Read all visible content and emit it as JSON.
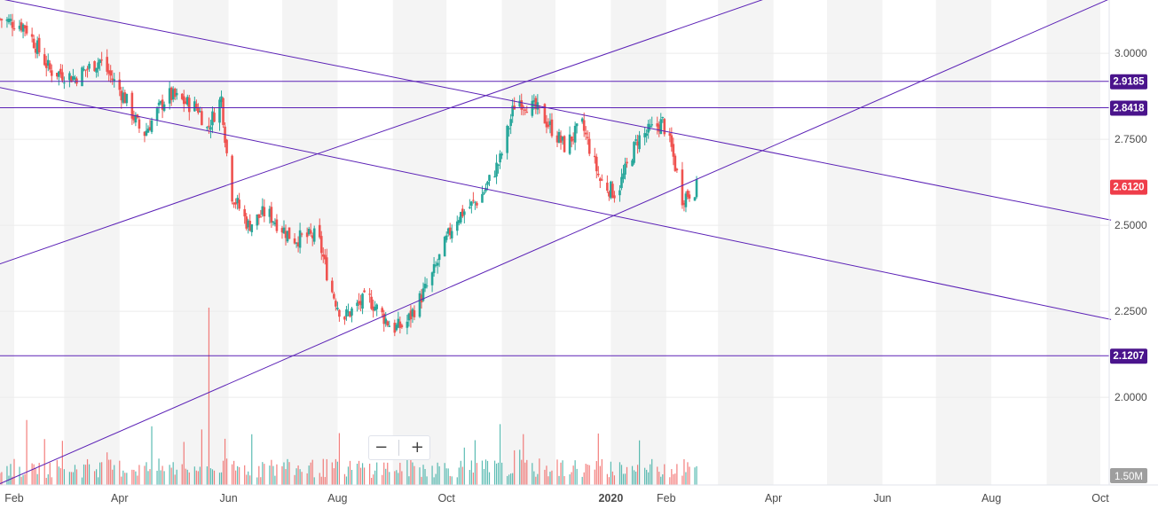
{
  "colors": {
    "up": "#26a69a",
    "down": "#ef5350",
    "trendline": "#5b21b6",
    "price_tag": "#ef3d4a",
    "level_tag": "#4a148c",
    "volume_tag": "#9e9e9e",
    "band": "#f4f4f4"
  },
  "toolbar": {
    "zoom_out": "−",
    "zoom_in": "+"
  },
  "chart_data": {
    "type": "candlestick",
    "y_axis": {
      "ticks": [
        "3.0000",
        "2.7500",
        "2.5000",
        "2.2500",
        "2.0000"
      ],
      "tick_values": [
        3.0,
        2.75,
        2.5,
        2.25,
        2.0
      ],
      "ylim": [
        1.745,
        3.155
      ]
    },
    "x_axis": {
      "ticks": [
        "Feb",
        "Apr",
        "Jun",
        "Aug",
        "Oct",
        "2020",
        "Feb",
        "Apr",
        "Jun",
        "Aug",
        "Oct"
      ],
      "tick_dates": [
        "2019-02",
        "2019-04",
        "2019-06",
        "2019-08",
        "2019-10",
        "2020-01",
        "2020-02",
        "2020-04",
        "2020-06",
        "2020-08",
        "2020-10"
      ]
    },
    "current_price": "2.6120",
    "horizontal_levels": [
      "2.9185",
      "2.8418",
      "2.1207"
    ],
    "volume_label": "1.50M",
    "close_path": [
      [
        "2019-01-24",
        3.1
      ],
      [
        "2019-02-07",
        3.08
      ],
      [
        "2019-02-21",
        2.95
      ],
      [
        "2019-03-07",
        2.93
      ],
      [
        "2019-03-21",
        2.98
      ],
      [
        "2019-04-04",
        2.87
      ],
      [
        "2019-04-14",
        2.76
      ],
      [
        "2019-04-28",
        2.88
      ],
      [
        "2019-05-15",
        2.84
      ],
      [
        "2019-05-20",
        2.78
      ],
      [
        "2019-05-28",
        2.87
      ],
      [
        "2019-06-02",
        2.6
      ],
      [
        "2019-06-12",
        2.5
      ],
      [
        "2019-06-22",
        2.54
      ],
      [
        "2019-07-07",
        2.46
      ],
      [
        "2019-07-21",
        2.47
      ],
      [
        "2019-07-28",
        2.32
      ],
      [
        "2019-08-04",
        2.23
      ],
      [
        "2019-08-18",
        2.29
      ],
      [
        "2019-09-01",
        2.2
      ],
      [
        "2019-09-08",
        2.21
      ],
      [
        "2019-09-22",
        2.34
      ],
      [
        "2019-10-06",
        2.52
      ],
      [
        "2019-10-20",
        2.58
      ],
      [
        "2019-10-31",
        2.69
      ],
      [
        "2019-11-09",
        2.87
      ],
      [
        "2019-11-22",
        2.83
      ],
      [
        "2019-12-06",
        2.73
      ],
      [
        "2019-12-16",
        2.79
      ],
      [
        "2019-12-26",
        2.63
      ],
      [
        "2020-01-04",
        2.59
      ],
      [
        "2020-01-16",
        2.75
      ],
      [
        "2020-01-30",
        2.8
      ],
      [
        "2020-02-04",
        2.72
      ],
      [
        "2020-02-10",
        2.58
      ],
      [
        "2020-02-18",
        2.61
      ]
    ],
    "trend_lines": [
      {
        "from": [
          "2019-01-18",
          3.165
        ],
        "to": [
          "2020-10-07",
          2.515
        ]
      },
      {
        "from": [
          "2019-01-18",
          2.907
        ],
        "to": [
          "2020-10-07",
          2.226
        ]
      },
      {
        "from": [
          "2019-01-18",
          2.377
        ],
        "to": [
          "2019-11-13",
          2.915
        ],
        "extend_to_date": "2020-04-10"
      },
      {
        "from": [
          "2019-01-18",
          1.735
        ],
        "to": [
          "2020-10-07",
          3.16
        ]
      }
    ]
  }
}
